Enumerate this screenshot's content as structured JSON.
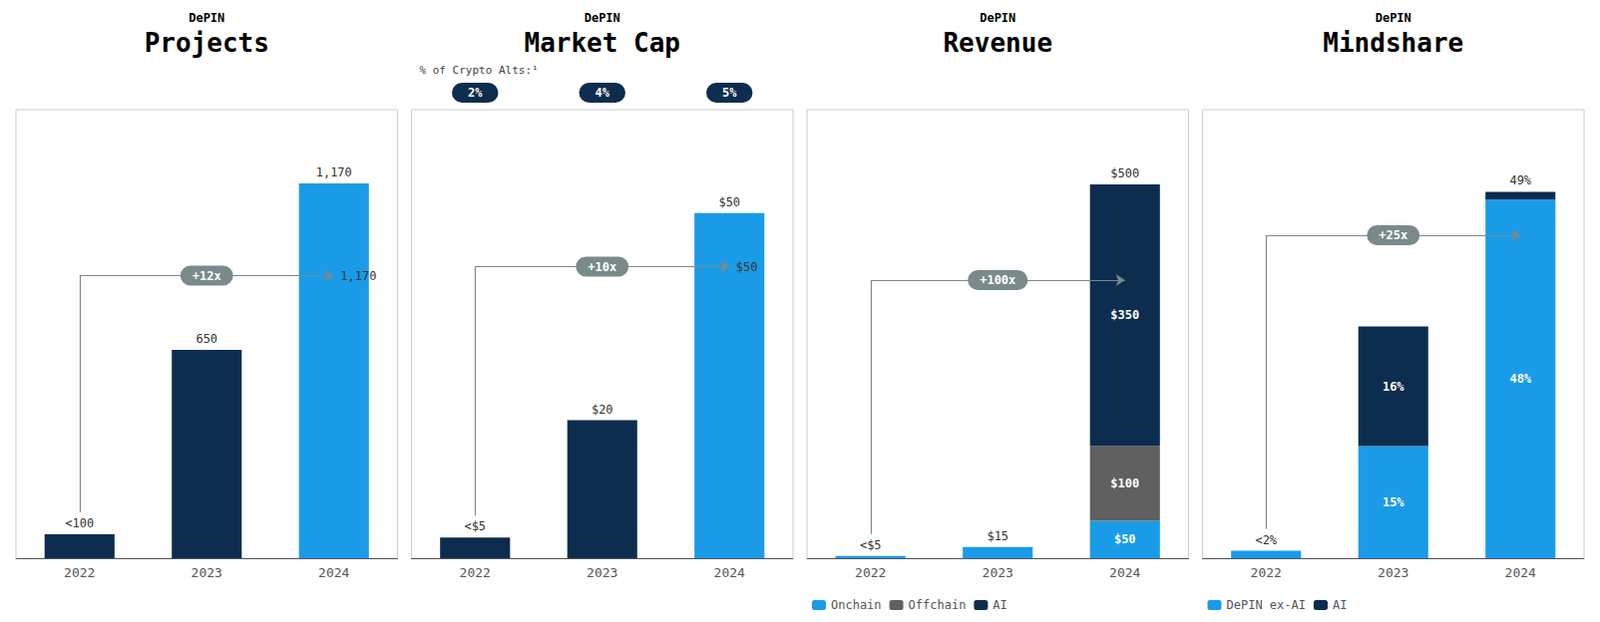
{
  "chart_data": [
    {
      "type": "bar",
      "subtitle": "DePIN",
      "title": "Projects",
      "categories": [
        "2022",
        "2023",
        "2024"
      ],
      "values": [
        75,
        650,
        1170
      ],
      "colors": [
        "#0d2d4e",
        "#0d2d4e",
        "#1a9be8"
      ],
      "data_labels": true,
      "value_labels": [
        "<100",
        "650",
        "1,170"
      ],
      "ylim": [
        0,
        1400
      ],
      "tick_labels": "x",
      "grid": false,
      "arrow": {
        "label": "+12x",
        "end_label": "1,170",
        "color": "#7a8a8a"
      }
    },
    {
      "type": "bar",
      "subtitle": "DePIN",
      "title": "Market Cap",
      "categories": [
        "2022",
        "2023",
        "2024"
      ],
      "values": [
        3,
        20,
        50
      ],
      "colors": [
        "#0d2d4e",
        "#0d2d4e",
        "#1a9be8"
      ],
      "data_labels": true,
      "value_labels": [
        "<$5",
        "$20",
        "$50"
      ],
      "ylim": [
        0,
        65
      ],
      "tick_labels": "x",
      "grid": false,
      "arrow": {
        "label": "+10x",
        "end_label": "$50",
        "color": "#7a8a8a"
      },
      "crypto_alts_share": {
        "label": "% of Crypto Alts:¹",
        "values": [
          2,
          4,
          5
        ],
        "value_labels": [
          "2%",
          "4%",
          "5%"
        ],
        "color": "#0d2d4e"
      }
    },
    {
      "type": "bar",
      "subtitle": "DePIN",
      "title": "Revenue",
      "categories": [
        "2022",
        "2023",
        "2024"
      ],
      "stacked": true,
      "series": [
        {
          "name": "Onchain",
          "color": "#1a9be8",
          "values": [
            3,
            15,
            50
          ],
          "value_labels": [
            "<$5",
            "$15",
            "$50"
          ]
        },
        {
          "name": "Offchain",
          "color": "#606060",
          "values": [
            0,
            0,
            100
          ],
          "value_labels": [
            null,
            null,
            "$100"
          ]
        },
        {
          "name": "AI",
          "color": "#0d2d4e",
          "values": [
            0,
            0,
            350
          ],
          "value_labels": [
            null,
            null,
            "$350"
          ]
        }
      ],
      "total_labels": [
        null,
        null,
        "$500"
      ],
      "data_labels": true,
      "ylim": [
        0,
        600
      ],
      "tick_labels": "x",
      "grid": false,
      "legend": "bottom",
      "arrow": {
        "label": "+100x",
        "color": "#7a8a8a"
      }
    },
    {
      "type": "bar",
      "subtitle": "DePIN",
      "title": "Mindshare",
      "categories": [
        "2022",
        "2023",
        "2024"
      ],
      "stacked": true,
      "series": [
        {
          "name": "DePIN ex-AI",
          "color": "#1a9be8",
          "values": [
            1,
            15,
            48
          ],
          "value_labels": [
            "<2%",
            "15%",
            "48%"
          ]
        },
        {
          "name": "AI",
          "color": "#0d2d4e",
          "values": [
            0,
            16,
            1
          ],
          "value_labels": [
            null,
            "16%",
            null
          ]
        }
      ],
      "total_labels": [
        null,
        null,
        "49%"
      ],
      "data_labels": true,
      "ylim": [
        0,
        60
      ],
      "tick_labels": "x",
      "grid": false,
      "legend": "bottom",
      "arrow": {
        "label": "+25x",
        "color": "#7a8a8a"
      }
    }
  ]
}
